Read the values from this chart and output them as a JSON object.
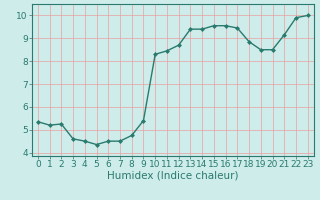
{
  "x": [
    0,
    1,
    2,
    3,
    4,
    5,
    6,
    7,
    8,
    9,
    10,
    11,
    12,
    13,
    14,
    15,
    16,
    17,
    18,
    19,
    20,
    21,
    22,
    23
  ],
  "y": [
    5.35,
    5.2,
    5.25,
    4.6,
    4.5,
    4.35,
    4.5,
    4.5,
    4.75,
    5.4,
    8.3,
    8.45,
    8.7,
    9.4,
    9.4,
    9.55,
    9.55,
    9.45,
    8.85,
    8.5,
    8.5,
    9.15,
    9.9,
    10.0
  ],
  "line_color": "#2a7a6e",
  "marker": "D",
  "marker_size": 2.0,
  "bg_color": "#ceecea",
  "grid_color": "#e8a0a0",
  "xlabel": "Humidex (Indice chaleur)",
  "xlim": [
    -0.5,
    23.5
  ],
  "ylim": [
    3.85,
    10.5
  ],
  "yticks": [
    4,
    5,
    6,
    7,
    8,
    9,
    10
  ],
  "xticks": [
    0,
    1,
    2,
    3,
    4,
    5,
    6,
    7,
    8,
    9,
    10,
    11,
    12,
    13,
    14,
    15,
    16,
    17,
    18,
    19,
    20,
    21,
    22,
    23
  ],
  "xlabel_fontsize": 7.5,
  "tick_fontsize": 6.5,
  "line_width": 1.0
}
